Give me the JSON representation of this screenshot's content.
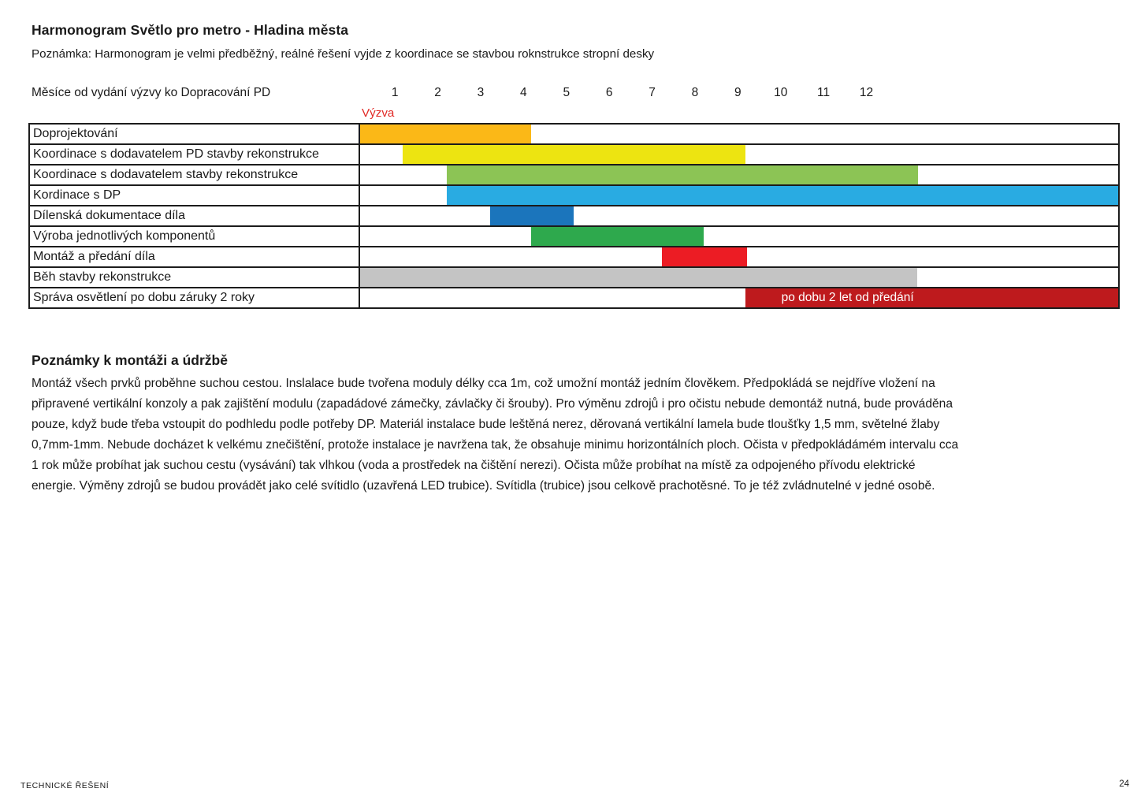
{
  "title": "Harmonogram Světlo pro metro - Hladina města",
  "subtitle": "Poznámka: Harmonogram je velmi předběžný, reálné řešení vyjde z koordinace se stavbou roknstrukce stropní desky",
  "chart": {
    "axis_label": "Měsíce od vydání výzvy ko Dopracování PD",
    "months": [
      "1",
      "2",
      "3",
      "4",
      "5",
      "6",
      "7",
      "8",
      "9",
      "10",
      "11",
      "12"
    ],
    "vyzva_label": "Výzva",
    "vyzva_color": "#E12A26"
  },
  "chart_data": {
    "type": "bar",
    "subtype": "gantt-horizontal",
    "title": "Harmonogram Světlo pro metro - Hladina města",
    "xlabel": "Měsíce od vydání výzvy ko Dopracování PD",
    "x_ticks": [
      1,
      2,
      3,
      4,
      5,
      6,
      7,
      8,
      9,
      10,
      11,
      12
    ],
    "annotation": "Výzva (at month 1, start of scale)",
    "grid": false,
    "legend": false,
    "tasks": [
      {
        "label": "Doprojektování",
        "start_month": 0,
        "end_month": 4,
        "color": "#FBB817",
        "start_pct": 0,
        "width_pct": 22.6
      },
      {
        "label": "Koordinace s dodavatelem PD stavby rekonstrukce",
        "start_month": 1,
        "end_month": 9,
        "color": "#EDE411",
        "start_pct": 5.6,
        "width_pct": 45.2
      },
      {
        "label": "Koordinace s dodavatelem stavby rekonstrukce",
        "start_month": 2,
        "end_month": 13,
        "color": "#8CC455",
        "start_pct": 11.4,
        "width_pct": 62.2
      },
      {
        "label": "Kordinace s DP",
        "start_month": 2,
        "end_month": 17.7,
        "color": "#29ABE2",
        "start_pct": 11.4,
        "width_pct": 88.6
      },
      {
        "label": "Dílenská dokumentace díla",
        "start_month": 3,
        "end_month": 5,
        "color": "#1B75BC",
        "start_pct": 17.1,
        "width_pct": 11.1
      },
      {
        "label": "Výroba jednotlivých komponentů",
        "start_month": 4,
        "end_month": 8,
        "color": "#2EA94D",
        "start_pct": 22.6,
        "width_pct": 22.7
      },
      {
        "label": "Montáž a předání díla",
        "start_month": 7,
        "end_month": 9,
        "color": "#EC1C24",
        "start_pct": 39.8,
        "width_pct": 11.2
      },
      {
        "label": "Běh stavby rekonstrukce",
        "start_month": 0,
        "end_month": 13,
        "color": "#C4C4C4",
        "start_pct": 0,
        "width_pct": 73.5
      },
      {
        "label": "Správa osvětlení po dobu záruky 2 roky",
        "start_month": 9,
        "end_month": 17.7,
        "color": "#BE1A1D",
        "start_pct": 50.8,
        "width_pct": 49.2,
        "bar_label": "po dobu 2 let od předání",
        "bar_label_color": "#FFFFFF"
      }
    ]
  },
  "notes": {
    "heading": "Poznámky k montáži a údržbě",
    "body": "Montáž všech prvků proběhne suchou cestou. Inslalace bude tvořena moduly délky cca 1m, což umožní montáž jedním člověkem. Předpokládá se nejdříve vložení na připravené vertikální konzoly a pak zajištění modulu (zapadádové zámečky, závlačky či šrouby). Pro výměnu zdrojů i pro očistu nebude demontáž nutná, bude prováděna pouze, když bude třeba vstoupit do podhledu podle potřeby DP. Materiál instalace bude leštěná nerez, děrovaná vertikální lamela bude tloušťky 1,5 mm, světelné žlaby 0,7mm-1mm. Nebude docházet k velkému znečištění, protože instalace je navržena tak, že obsahuje minimu horizontálních ploch. Očista v předpokládámém intervalu cca 1 rok může probíhat jak suchou cestu (vysávání) tak vlhkou (voda a prostředek na čištění nerezi). Očista může probíhat na místě za odpojeného přívodu elektrické energie. Výměny zdrojů  se budou provádět jako celé svítidlo (uzavřená LED trubice). Svítidla (trubice) jsou celkově prachotěsné. To je též zvládnutelné v jedné osobě."
  },
  "footer": {
    "left": "TECHNICKÉ ŘEŠENÍ",
    "page": "24"
  }
}
